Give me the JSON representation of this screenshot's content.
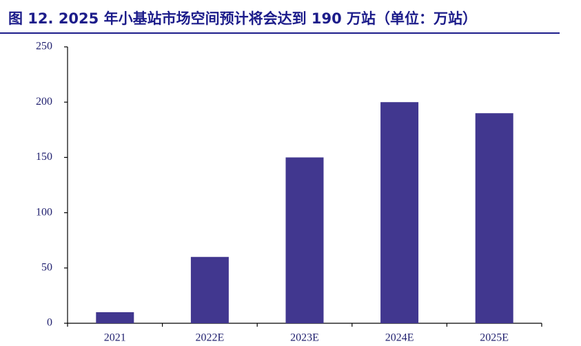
{
  "chart_data": {
    "type": "bar",
    "title": "图 12. 2025 年小基站市场空间预计将会达到 190 万站（单位：万站）",
    "categories": [
      "2021",
      "2022E",
      "2023E",
      "2024E",
      "2025E"
    ],
    "values": [
      10,
      60,
      150,
      200,
      190
    ],
    "color": "#41378f",
    "ylim": [
      0,
      250
    ],
    "yticks": [
      0,
      50,
      100,
      150,
      200,
      250
    ]
  }
}
